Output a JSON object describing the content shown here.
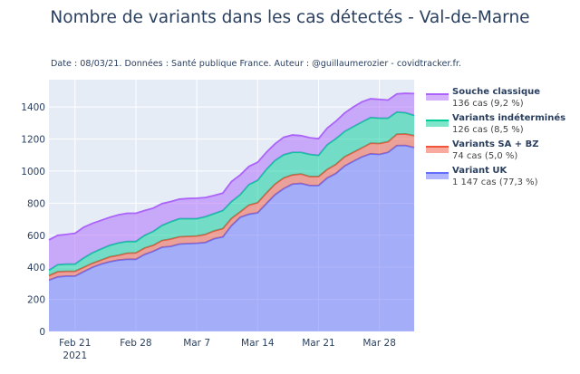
{
  "title": "Nombre de variants dans les cas détectés - Val-de-Marne",
  "subtitle": "Date : 08/03/21. Données : Santé publique France. Auteur : @guillaumerozier - covidtracker.fr.",
  "chart_data": {
    "type": "area",
    "stacked": true,
    "x": [
      "2021-02-18",
      "2021-02-19",
      "2021-02-20",
      "2021-02-21",
      "2021-02-22",
      "2021-02-23",
      "2021-02-24",
      "2021-02-25",
      "2021-02-26",
      "2021-02-27",
      "2021-02-28",
      "2021-03-01",
      "2021-03-02",
      "2021-03-03",
      "2021-03-04",
      "2021-03-05",
      "2021-03-06",
      "2021-03-07",
      "2021-03-08",
      "2021-03-09",
      "2021-03-10",
      "2021-03-11",
      "2021-03-12",
      "2021-03-13",
      "2021-03-14",
      "2021-03-15",
      "2021-03-16",
      "2021-03-17",
      "2021-03-18",
      "2021-03-19",
      "2021-03-20",
      "2021-03-21",
      "2021-03-22",
      "2021-03-23",
      "2021-03-24",
      "2021-03-25",
      "2021-03-26",
      "2021-03-27",
      "2021-03-28",
      "2021-03-29",
      "2021-03-30",
      "2021-03-31",
      "2021-04-01"
    ],
    "x_ticks": [
      {
        "date": "2021-02-21",
        "label": "Feb 21",
        "sublabel": "2021"
      },
      {
        "date": "2021-02-28",
        "label": "Feb 28"
      },
      {
        "date": "2021-03-07",
        "label": "Mar 7"
      },
      {
        "date": "2021-03-14",
        "label": "Mar 14"
      },
      {
        "date": "2021-03-21",
        "label": "Mar 21"
      },
      {
        "date": "2021-03-28",
        "label": "Mar 28"
      }
    ],
    "y_ticks": [
      0,
      200,
      400,
      600,
      800,
      1000,
      1200,
      1400
    ],
    "ylim": [
      0,
      1570
    ],
    "grid": true,
    "legend_position": "right",
    "series": [
      {
        "name": "Variant UK",
        "legend_sub": "1 147 cas (77,3 %)",
        "color": "#636efa",
        "values": [
          320,
          340,
          345,
          345,
          373,
          400,
          420,
          435,
          445,
          450,
          450,
          480,
          500,
          525,
          530,
          545,
          548,
          550,
          555,
          578,
          590,
          660,
          712,
          731,
          740,
          797,
          853,
          891,
          919,
          923,
          910,
          910,
          957,
          985,
          1032,
          1061,
          1089,
          1108,
          1104,
          1117,
          1159,
          1160,
          1147
        ]
      },
      {
        "name": "Variants SA + BZ",
        "legend_sub": "74 cas (5,0 %)",
        "color": "#ef553b",
        "values": [
          28,
          32,
          30,
          30,
          27,
          25,
          25,
          30,
          30,
          38,
          40,
          40,
          37,
          42,
          46,
          45,
          45,
          45,
          50,
          49,
          51,
          45,
          34,
          57,
          63,
          66,
          66,
          66,
          57,
          59,
          56,
          56,
          53,
          57,
          57,
          56,
          56,
          66,
          68,
          66,
          71,
          72,
          74
        ]
      },
      {
        "name": "Variants indéterminés",
        "legend_sub": "126 cas (8,5 %)",
        "color": "#00cc96",
        "values": [
          34,
          44,
          45,
          45,
          58,
          65,
          69,
          72,
          77,
          73,
          71,
          79,
          87,
          94,
          108,
          113,
          110,
          108,
          111,
          108,
          113,
          105,
          107,
          128,
          139,
          147,
          147,
          145,
          141,
          135,
          138,
          132,
          154,
          160,
          158,
          160,
          161,
          160,
          158,
          147,
          138,
          132,
          126
        ]
      },
      {
        "name": "Souche classique",
        "legend_sub": "136 cas (9,2 %)",
        "color": "#ab63fa",
        "values": [
          189,
          183,
          185,
          192,
          192,
          184,
          179,
          175,
          175,
          176,
          176,
          155,
          145,
          136,
          126,
          122,
          126,
          128,
          119,
          113,
          109,
          125,
          123,
          113,
          113,
          107,
          104,
          109,
          108,
          104,
          104,
          104,
          104,
          109,
          115,
          123,
          126,
          117,
          117,
          113,
          113,
          121,
          136
        ]
      }
    ]
  }
}
